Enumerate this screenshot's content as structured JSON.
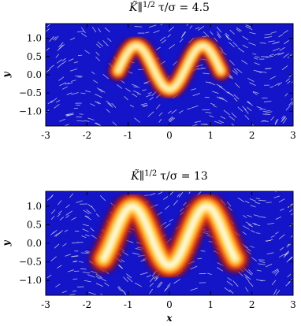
{
  "chart_data": [
    {
      "type": "heatmap",
      "title": {
        "base": "K̃∥",
        "sup": "1/2",
        "tail": "τ/σ = 4.5"
      },
      "y_label": "y",
      "xlim": [
        -3,
        3
      ],
      "ylim": [
        -1.4,
        1.4
      ],
      "xticks": [
        -3,
        -2,
        -1,
        0,
        1,
        2,
        3
      ],
      "yticks": [
        {
          "value": -1,
          "label": "−1.0"
        },
        {
          "value": -0.5,
          "label": "−0.5"
        },
        {
          "value": 0,
          "label": "0.0"
        },
        {
          "value": 0.5,
          "label": "0.5"
        },
        {
          "value": 1,
          "label": "1.0"
        }
      ]
    },
    {
      "type": "heatmap",
      "title": {
        "base": "K̃∥",
        "sup": "1/2",
        "tail": "τ/σ = 13"
      },
      "x_label": "x",
      "y_label": "y",
      "xlim": [
        -3,
        3
      ],
      "ylim": [
        -1.4,
        1.4
      ],
      "xticks": [
        -3,
        -2,
        -1,
        0,
        1,
        2,
        3
      ],
      "yticks": [
        {
          "value": -1,
          "label": "−1.0"
        },
        {
          "value": -0.5,
          "label": "−0.5"
        },
        {
          "value": 0,
          "label": "0.0"
        },
        {
          "value": 0.5,
          "label": "0.5"
        },
        {
          "value": 1,
          "label": "1.0"
        }
      ]
    }
  ]
}
